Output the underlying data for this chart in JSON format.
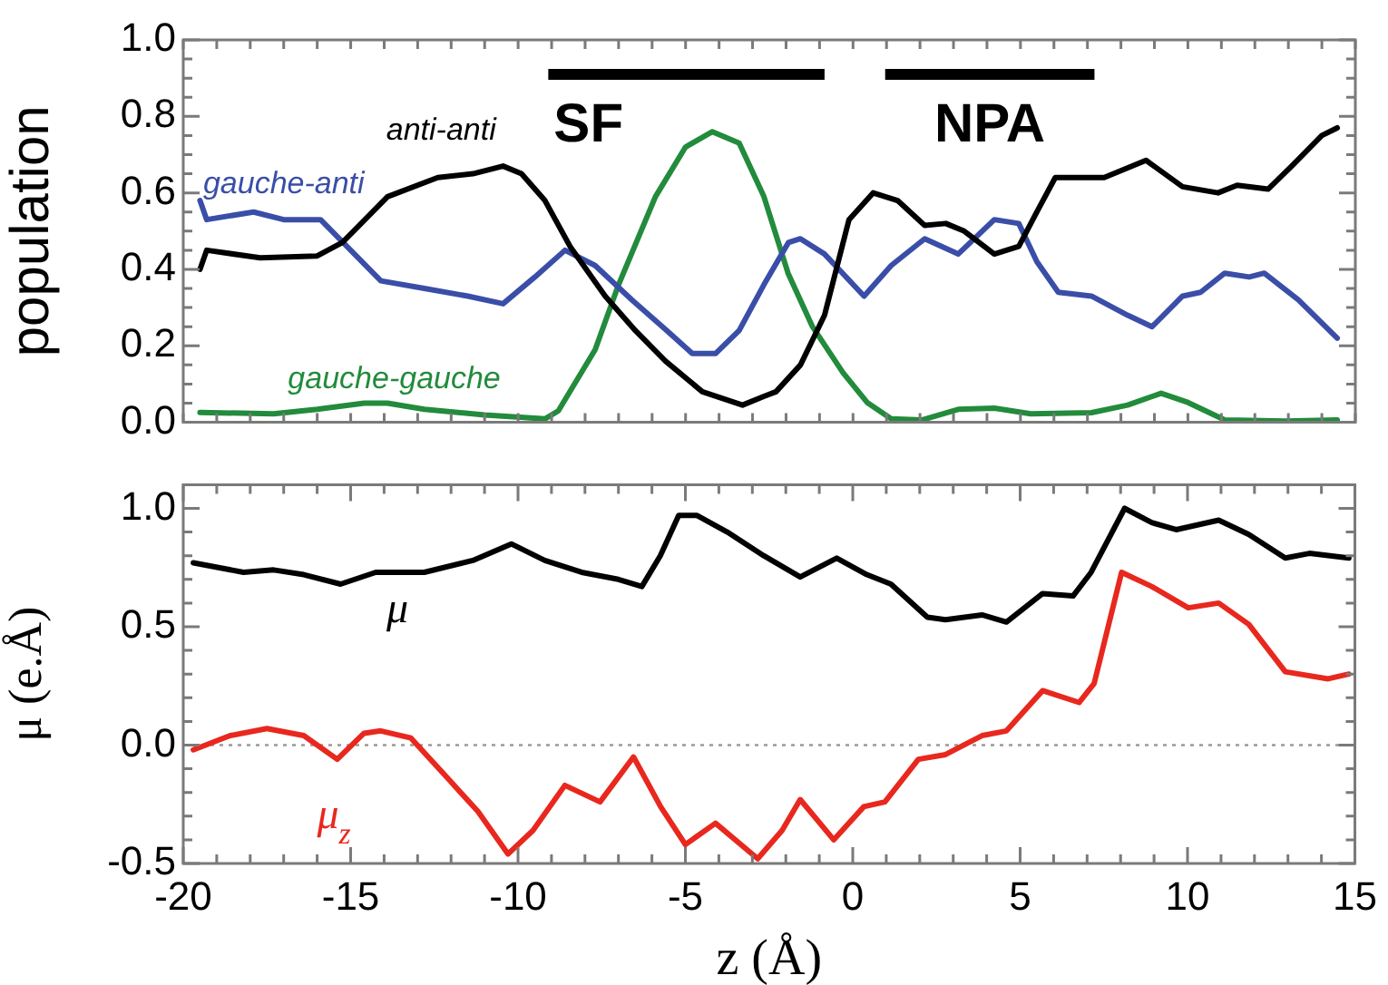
{
  "chart_data": [
    {
      "type": "line",
      "ylabel": "population",
      "xlim": [
        -20,
        15
      ],
      "xticks": [
        {
          "value": -20,
          "label": null
        },
        {
          "value": -19,
          "label": null
        },
        {
          "value": -18,
          "label": null
        },
        {
          "value": -17,
          "label": null
        },
        {
          "value": -16,
          "label": null
        },
        {
          "value": -15,
          "label": null
        },
        {
          "value": -14,
          "label": null
        },
        {
          "value": -13,
          "label": null
        },
        {
          "value": -12,
          "label": null
        },
        {
          "value": -11,
          "label": null
        },
        {
          "value": -10,
          "label": null
        },
        {
          "value": -9,
          "label": null
        },
        {
          "value": -8,
          "label": null
        },
        {
          "value": -7,
          "label": null
        },
        {
          "value": -6,
          "label": null
        },
        {
          "value": -5,
          "label": null
        },
        {
          "value": -4,
          "label": null
        },
        {
          "value": -3,
          "label": null
        },
        {
          "value": -2,
          "label": null
        },
        {
          "value": -1,
          "label": null
        },
        {
          "value": 0,
          "label": null
        },
        {
          "value": 1,
          "label": null
        },
        {
          "value": 2,
          "label": null
        },
        {
          "value": 3,
          "label": null
        },
        {
          "value": 4,
          "label": null
        },
        {
          "value": 5,
          "label": null
        },
        {
          "value": 6,
          "label": null
        },
        {
          "value": 7,
          "label": null
        },
        {
          "value": 8,
          "label": null
        },
        {
          "value": 9,
          "label": null
        },
        {
          "value": 10,
          "label": null
        },
        {
          "value": 11,
          "label": null
        },
        {
          "value": 12,
          "label": null
        },
        {
          "value": 13,
          "label": null
        },
        {
          "value": 14,
          "label": null
        },
        {
          "value": 15,
          "label": null
        }
      ],
      "ylim": [
        0,
        1
      ],
      "yticks": [
        {
          "value": 0,
          "label": "0.0"
        },
        {
          "value": 0.05,
          "label": null
        },
        {
          "value": 0.1,
          "label": null
        },
        {
          "value": 0.15,
          "label": null
        },
        {
          "value": 0.2,
          "label": "0.2"
        },
        {
          "value": 0.25,
          "label": null
        },
        {
          "value": 0.3,
          "label": null
        },
        {
          "value": 0.35,
          "label": null
        },
        {
          "value": 0.4,
          "label": "0.4"
        },
        {
          "value": 0.45,
          "label": null
        },
        {
          "value": 0.5,
          "label": null
        },
        {
          "value": 0.55,
          "label": null
        },
        {
          "value": 0.6,
          "label": "0.6"
        },
        {
          "value": 0.65,
          "label": null
        },
        {
          "value": 0.7,
          "label": null
        },
        {
          "value": 0.75,
          "label": null
        },
        {
          "value": 0.8,
          "label": "0.8"
        },
        {
          "value": 0.85,
          "label": null
        },
        {
          "value": 0.9,
          "label": null
        },
        {
          "value": 0.95,
          "label": null
        },
        {
          "value": 1,
          "label": "1.0"
        }
      ],
      "tick_labels": "y",
      "grid": false,
      "legend": false,
      "marker": "none",
      "line_style": "solid",
      "annotations": [
        "SF",
        "NPA"
      ],
      "series": [
        {
          "color": "#000000",
          "x": [
            -9.1,
            -0.85
          ],
          "values": [
            0.91,
            0.91
          ]
        },
        {
          "color": "#000000",
          "x": [
            0.96,
            7.21
          ],
          "values": [
            0.91,
            0.91
          ]
        },
        {
          "name": "anti-anti",
          "color": "#000000",
          "x": [
            -19.5,
            -19.3,
            -17.7,
            -16.0,
            -15.25,
            -13.9,
            -12.4,
            -11.35,
            -10.45,
            -9.9,
            -9.2,
            -8.45,
            -7.4,
            -6.5,
            -5.6,
            -4.5,
            -3.3,
            -2.66,
            -2.3,
            -1.57,
            -0.85,
            -0.12,
            0.6,
            1.33,
            2.14,
            2.77,
            3.32,
            4.22,
            4.95,
            5.49,
            6.04,
            7.5,
            8.75,
            9.84,
            10.9,
            11.47,
            12.4,
            13.1,
            14.0,
            14.46
          ],
          "values": [
            0.4,
            0.45,
            0.43,
            0.435,
            0.47,
            0.59,
            0.64,
            0.65,
            0.67,
            0.65,
            0.58,
            0.46,
            0.33,
            0.24,
            0.16,
            0.08,
            0.045,
            0.068,
            0.08,
            0.15,
            0.28,
            0.53,
            0.6,
            0.58,
            0.515,
            0.52,
            0.5,
            0.44,
            0.46,
            0.55,
            0.64,
            0.64,
            0.685,
            0.616,
            0.6,
            0.62,
            0.61,
            0.67,
            0.75,
            0.77
          ]
        },
        {
          "name": "gauche-anti",
          "color": "#3a4ea8",
          "x": [
            -19.5,
            -19.3,
            -17.9,
            -17.0,
            -15.9,
            -15.0,
            -14.1,
            -12.8,
            -11.5,
            -10.45,
            -9.5,
            -8.6,
            -7.7,
            -6.6,
            -5.56,
            -4.8,
            -4.1,
            -3.4,
            -2.66,
            -1.93,
            -1.57,
            -0.85,
            0.33,
            1.14,
            2.14,
            3.14,
            4.22,
            4.95,
            5.49,
            6.13,
            7.12,
            8.2,
            8.93,
            9.84,
            10.38,
            11.1,
            11.83,
            12.28,
            13.3,
            14.46
          ],
          "values": [
            0.58,
            0.53,
            0.55,
            0.53,
            0.53,
            0.45,
            0.37,
            0.35,
            0.33,
            0.31,
            0.38,
            0.45,
            0.41,
            0.32,
            0.24,
            0.18,
            0.18,
            0.24,
            0.36,
            0.47,
            0.48,
            0.44,
            0.33,
            0.41,
            0.48,
            0.44,
            0.53,
            0.52,
            0.42,
            0.34,
            0.33,
            0.28,
            0.25,
            0.33,
            0.34,
            0.39,
            0.38,
            0.39,
            0.32,
            0.22
          ]
        },
        {
          "name": "gauche-gauche",
          "color": "#228b3c",
          "x": [
            -19.5,
            -17.3,
            -16.0,
            -14.6,
            -13.9,
            -12.8,
            -11.0,
            -9.2,
            -8.8,
            -7.7,
            -7.0,
            -5.9,
            -5.0,
            -4.2,
            -3.4,
            -2.66,
            -1.94,
            -1.21,
            -0.3,
            0.42,
            1.14,
            2.05,
            3.14,
            4.22,
            5.31,
            7.12,
            8.2,
            9.2,
            10.0,
            11.1,
            12.92,
            14.46
          ],
          "values": [
            0.026,
            0.022,
            0.034,
            0.05,
            0.05,
            0.034,
            0.019,
            0.009,
            0.03,
            0.19,
            0.36,
            0.59,
            0.72,
            0.76,
            0.73,
            0.59,
            0.39,
            0.25,
            0.13,
            0.052,
            0.009,
            0.006,
            0.034,
            0.037,
            0.022,
            0.025,
            0.045,
            0.076,
            0.052,
            0.006,
            0.003,
            0.006
          ]
        }
      ]
    },
    {
      "type": "line",
      "ylabel": "μ (e.Å)",
      "xlabel": "z (Å)",
      "xlim": [
        -20,
        15
      ],
      "xticks": [
        {
          "value": -20,
          "label": "-20"
        },
        {
          "value": -19,
          "label": null
        },
        {
          "value": -18,
          "label": null
        },
        {
          "value": -17,
          "label": null
        },
        {
          "value": -16,
          "label": null
        },
        {
          "value": -15,
          "label": "-15"
        },
        {
          "value": -14,
          "label": null
        },
        {
          "value": -13,
          "label": null
        },
        {
          "value": -12,
          "label": null
        },
        {
          "value": -11,
          "label": null
        },
        {
          "value": -10,
          "label": "-10"
        },
        {
          "value": -9,
          "label": null
        },
        {
          "value": -8,
          "label": null
        },
        {
          "value": -7,
          "label": null
        },
        {
          "value": -6,
          "label": null
        },
        {
          "value": -5,
          "label": "-5"
        },
        {
          "value": -4,
          "label": null
        },
        {
          "value": -3,
          "label": null
        },
        {
          "value": -2,
          "label": null
        },
        {
          "value": -1,
          "label": null
        },
        {
          "value": 0,
          "label": "0"
        },
        {
          "value": 1,
          "label": null
        },
        {
          "value": 2,
          "label": null
        },
        {
          "value": 3,
          "label": null
        },
        {
          "value": 4,
          "label": null
        },
        {
          "value": 5,
          "label": "5"
        },
        {
          "value": 6,
          "label": null
        },
        {
          "value": 7,
          "label": null
        },
        {
          "value": 8,
          "label": null
        },
        {
          "value": 9,
          "label": null
        },
        {
          "value": 10,
          "label": "10"
        },
        {
          "value": 11,
          "label": null
        },
        {
          "value": 12,
          "label": null
        },
        {
          "value": 13,
          "label": null
        },
        {
          "value": 14,
          "label": null
        },
        {
          "value": 15,
          "label": "15"
        }
      ],
      "ylim": [
        -0.5,
        1.1
      ],
      "yticks": [
        {
          "value": -0.5,
          "label": "-0.5"
        },
        {
          "value": -0.4,
          "label": null
        },
        {
          "value": -0.3,
          "label": null
        },
        {
          "value": -0.2,
          "label": null
        },
        {
          "value": -0.1,
          "label": null
        },
        {
          "value": 0,
          "label": "0.0"
        },
        {
          "value": 0.1,
          "label": null
        },
        {
          "value": 0.2,
          "label": null
        },
        {
          "value": 0.3,
          "label": null
        },
        {
          "value": 0.4,
          "label": null
        },
        {
          "value": 0.5,
          "label": "0.5"
        },
        {
          "value": 0.6,
          "label": null
        },
        {
          "value": 0.7,
          "label": null
        },
        {
          "value": 0.8,
          "label": null
        },
        {
          "value": 0.9,
          "label": null
        },
        {
          "value": 1,
          "label": "1.0"
        },
        {
          "value": 1.1,
          "label": null
        }
      ],
      "grid": false,
      "legend": false,
      "marker": "none",
      "line_style": "solid",
      "ref_lines": [
        {
          "axis": "y",
          "value": 0,
          "color": "#9a9a9a",
          "line_style": "dotted"
        }
      ],
      "series": [
        {
          "name": "μ",
          "color": "#000000",
          "x": [
            -19.7,
            -18.2,
            -17.3,
            -16.4,
            -15.3,
            -14.25,
            -12.8,
            -11.35,
            -10.2,
            -9.2,
            -8.1,
            -7.0,
            -6.3,
            -5.75,
            -5.2,
            -4.65,
            -3.75,
            -2.66,
            -1.57,
            -0.48,
            0.42,
            1.14,
            2.23,
            2.77,
            3.86,
            4.59,
            5.67,
            6.58,
            7.12,
            8.12,
            8.93,
            9.66,
            10.93,
            11.83,
            12.92,
            13.64,
            14.82
          ],
          "values": [
            0.77,
            0.73,
            0.74,
            0.72,
            0.68,
            0.73,
            0.73,
            0.78,
            0.85,
            0.78,
            0.73,
            0.7,
            0.67,
            0.8,
            0.97,
            0.97,
            0.9,
            0.8,
            0.71,
            0.79,
            0.72,
            0.68,
            0.54,
            0.53,
            0.55,
            0.52,
            0.64,
            0.63,
            0.73,
            1.0,
            0.94,
            0.91,
            0.95,
            0.89,
            0.79,
            0.81,
            0.79
          ]
        },
        {
          "name": "μ$_{z}$",
          "color": "#e8281e",
          "x": [
            -19.7,
            -18.6,
            -17.5,
            -16.4,
            -15.4,
            -14.6,
            -14.1,
            -13.2,
            -12.1,
            -11.2,
            -10.3,
            -9.55,
            -8.6,
            -7.55,
            -6.55,
            -5.74,
            -5.0,
            -4.1,
            -2.84,
            -2.11,
            -1.57,
            -0.57,
            0.33,
            0.96,
            1.96,
            2.77,
            3.86,
            4.59,
            5.67,
            6.76,
            7.21,
            8.03,
            8.93,
            10.02,
            10.93,
            11.83,
            12.92,
            14.2,
            14.82
          ],
          "values": [
            -0.02,
            0.04,
            0.07,
            0.04,
            -0.06,
            0.05,
            0.06,
            0.03,
            -0.14,
            -0.28,
            -0.46,
            -0.36,
            -0.17,
            -0.24,
            -0.05,
            -0.26,
            -0.42,
            -0.33,
            -0.48,
            -0.36,
            -0.23,
            -0.4,
            -0.26,
            -0.24,
            -0.06,
            -0.04,
            0.04,
            0.06,
            0.23,
            0.18,
            0.26,
            0.73,
            0.67,
            0.58,
            0.6,
            0.51,
            0.31,
            0.28,
            0.3
          ]
        }
      ]
    }
  ]
}
